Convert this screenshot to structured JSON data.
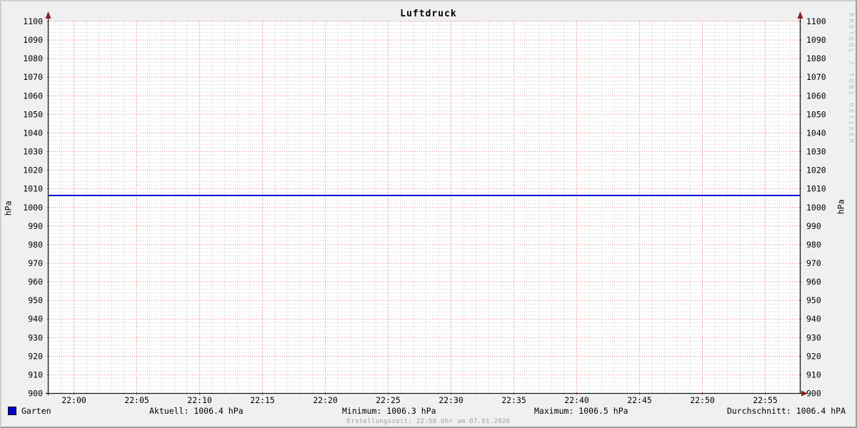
{
  "title": "Luftdruck",
  "y_axis_unit_left": "hPa",
  "y_axis_unit_right": "hPa",
  "watermark": "RRDTOOL / TOBI OETIKER",
  "footer": "Erstellungszeit: 22:58 Uhr am 07.01.2026",
  "legend": {
    "series": "Garten",
    "aktuell": "Aktuell: 1006.4 hPa",
    "minimum": "Minimum: 1006.3 hPa",
    "maximum": "Maximum: 1006.5 hPa",
    "durchschnitt": "Durchschnitt: 1006.4 hPA"
  },
  "colors": {
    "background": "#f0f0f0",
    "canvas": "#ffffff",
    "grid_minor": "#cdcdcd",
    "grid_major": "#e27c7c",
    "axis": "#1a1a1a",
    "arrow": "#8b1f1f",
    "series_line": "#0000cc",
    "tick_text": "#000000"
  },
  "chart_data": {
    "type": "line",
    "title": "Luftdruck",
    "ylabel": "hPa",
    "ylim": [
      900,
      1100
    ],
    "y_tick_step": 10,
    "y_minor_step": 2,
    "x_tick_labels": [
      "22:00",
      "22:05",
      "22:10",
      "22:15",
      "22:20",
      "22:25",
      "22:30",
      "22:35",
      "22:40",
      "22:45",
      "22:50",
      "22:55"
    ],
    "x_minor_per_major": 5,
    "grid": "dotted, minor gray / major red, both axes labeled",
    "legend_position": "bottom",
    "series": [
      {
        "name": "Garten",
        "color": "#0000cc",
        "y_constant": 1006.4,
        "aktuell_hpa": 1006.4,
        "min_hpa": 1006.3,
        "max_hpa": 1006.5,
        "avg_hpa": 1006.4
      }
    ]
  }
}
